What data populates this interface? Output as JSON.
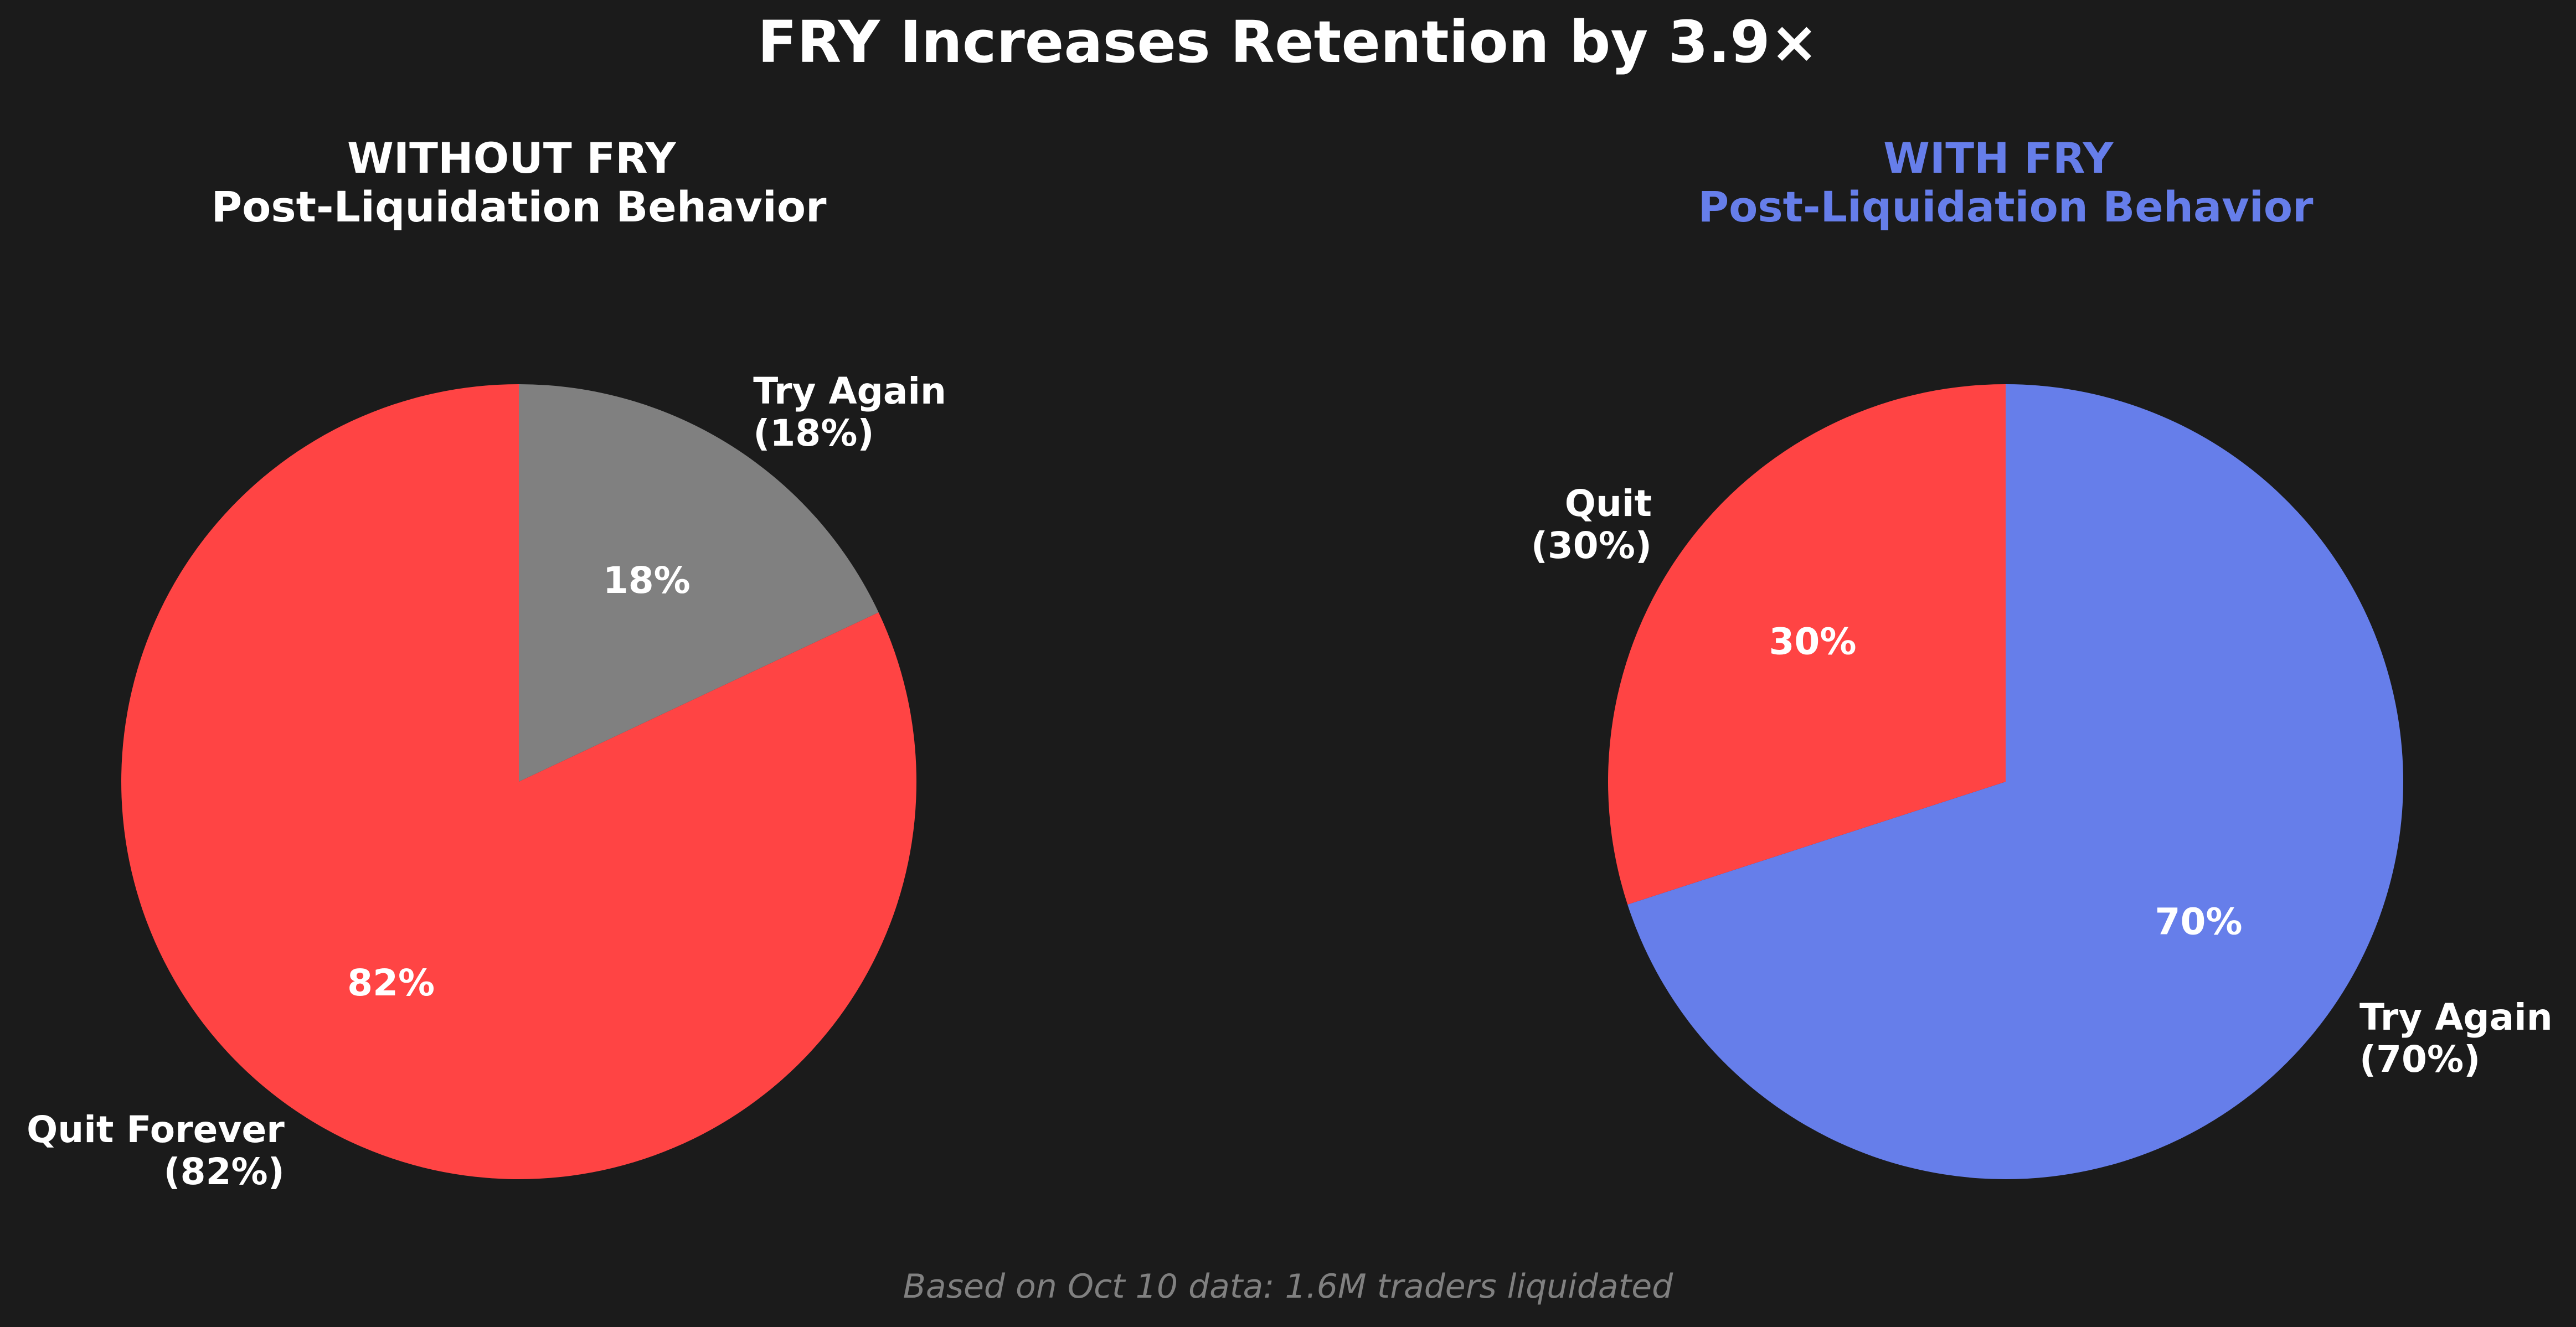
{
  "figure": {
    "title": "FRY Increases Retention by 3.9×",
    "footnote": "Based on Oct 10 data: 1.6M traders liquidated",
    "background": "#1b1b1b"
  },
  "chart_data": [
    {
      "type": "pie",
      "title_line1": "WITHOUT FRY",
      "title_line2": "Post-Liquidation Behavior",
      "title_color": "#ffffff",
      "start_angle_deg": 90,
      "direction": "clockwise",
      "slices": [
        {
          "name": "Try Again",
          "value": 18,
          "pct_label": "18%",
          "label_line1": "Try Again",
          "label_line2": "(18%)",
          "color": "#808080"
        },
        {
          "name": "Quit Forever",
          "value": 82,
          "pct_label": "82%",
          "label_line1": "Quit Forever",
          "label_line2": "(82%)",
          "color": "#ff4444"
        }
      ]
    },
    {
      "type": "pie",
      "title_line1": "WITH FRY",
      "title_line2": "Post-Liquidation Behavior",
      "title_color": "#667eea",
      "start_angle_deg": 90,
      "direction": "clockwise",
      "slices": [
        {
          "name": "Try Again",
          "value": 70,
          "pct_label": "70%",
          "label_line1": "Try Again",
          "label_line2": "(70%)",
          "color": "#667eea"
        },
        {
          "name": "Quit",
          "value": 30,
          "pct_label": "30%",
          "label_line1": "Quit",
          "label_line2": "(30%)",
          "color": "#ff4444"
        }
      ]
    }
  ]
}
